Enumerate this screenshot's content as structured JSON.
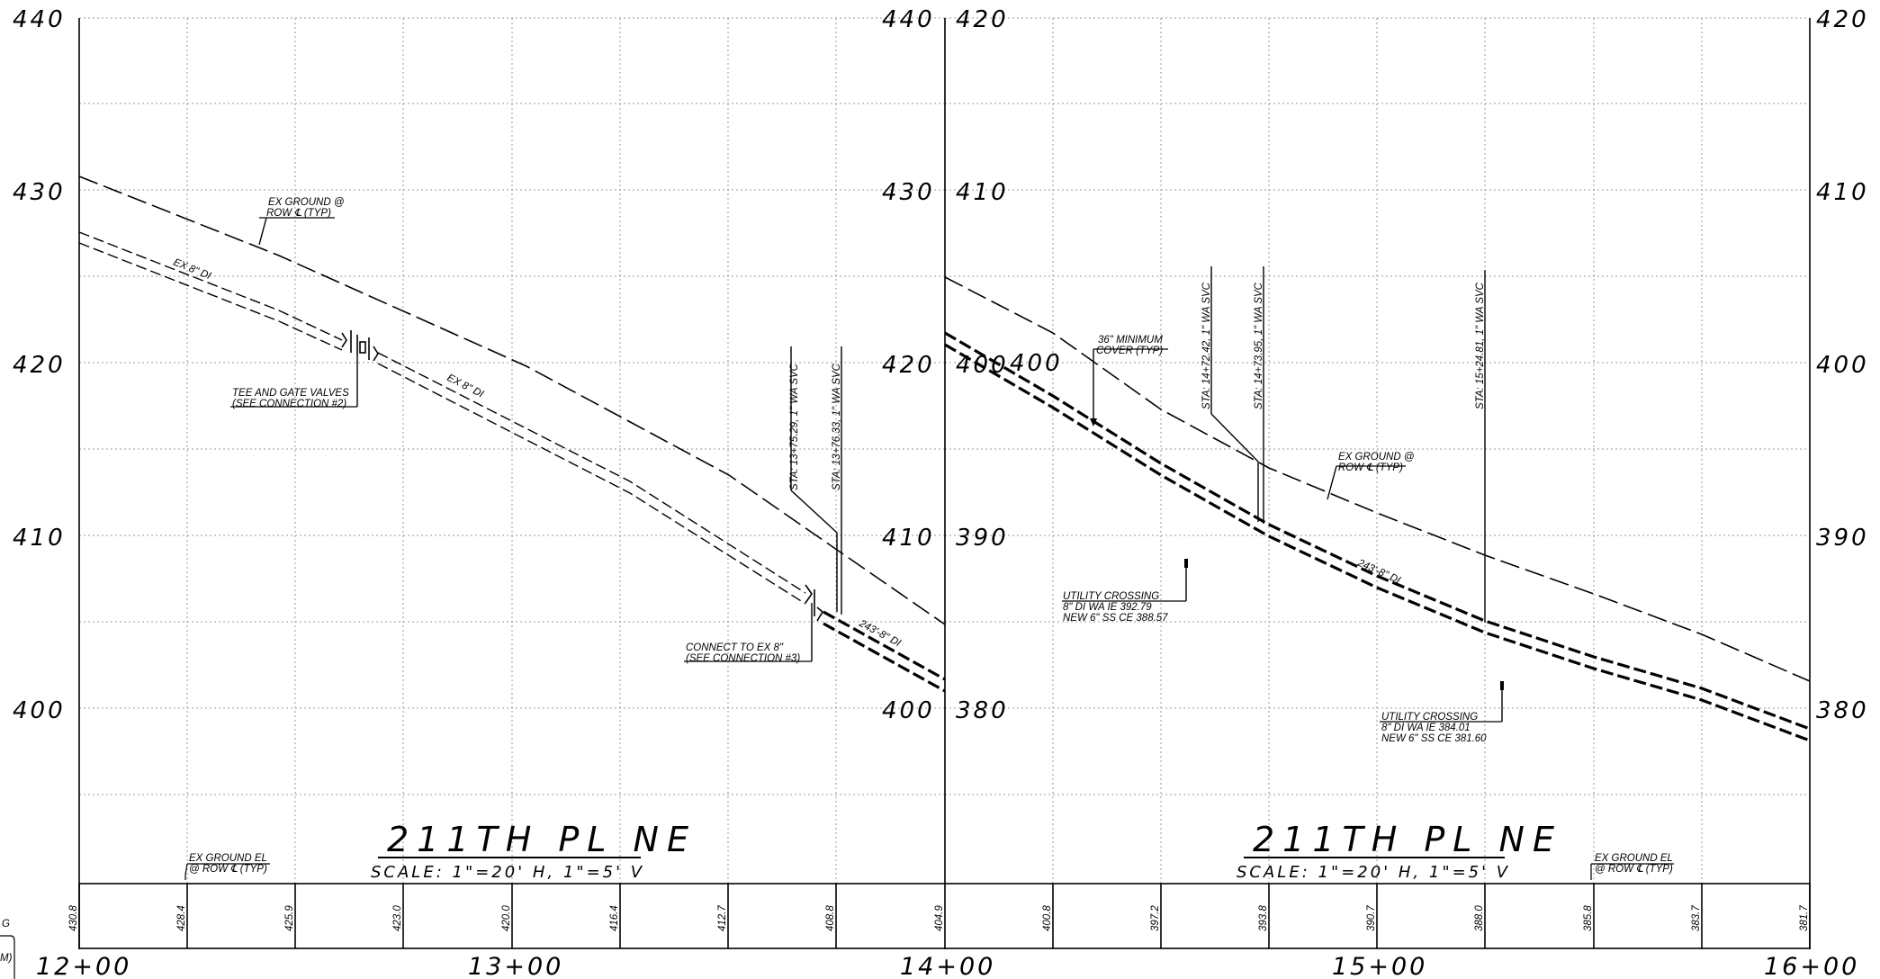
{
  "left_panel": {
    "elevations_left": [
      "440",
      "430",
      "420",
      "410",
      "400"
    ],
    "elevations_right": [
      "440",
      "430",
      "420",
      "410",
      "400"
    ],
    "annotations": {
      "ex_ground_1": "EX GROUND @",
      "ex_ground_2": "ROW ℄ (TYP)",
      "ex_pipe_1": "EX 8\" DI",
      "ex_pipe_2": "EX 8\" DI",
      "tee_1": "TEE AND GATE VALVES",
      "tee_2": "(SEE CONNECTION #2)",
      "svc_1": "STA: 13+75.29, 1\" WA SVC",
      "svc_2": "STA: 13+76.33, 1\" WA SVC",
      "connect_1": "CONNECT TO EX 8\"",
      "connect_2": "(SEE CONNECTION #3)",
      "new_pipe": "243'-8\" DI"
    },
    "title": "211TH PL NE",
    "scale": "SCALE: 1\"=20' H, 1\"=5' V",
    "band_note_1": "EX GROUND EL",
    "band_note_2": "@ ROW ℄ (TYP)"
  },
  "right_panel": {
    "elevations_left": [
      "420",
      "410",
      "400",
      "390",
      "380"
    ],
    "elevations_right": [
      "420",
      "410",
      "400",
      "390",
      "380"
    ],
    "annotations": {
      "min_cover_1": "36\" MINIMUM",
      "min_cover_2": "COVER (TYP)",
      "elev_400": "400",
      "svc_1": "STA: 14+72.42, 1\" WA SVC",
      "svc_2": "STA: 14+73.95, 1\" WA SVC",
      "svc_3": "STA: 15+24.81, 1\" WA SVC",
      "ex_ground_1": "EX GROUND @",
      "ex_ground_2": "ROW ℄ (TYP)",
      "new_pipe": "243'-8\" DI",
      "uc1_1": "UTILITY CROSSING",
      "uc1_2": "8\" DI WA IE 392.79",
      "uc1_3": "NEW 6\" SS CE 388.57",
      "uc2_1": "UTILITY CROSSING",
      "uc2_2": "8\" DI WA IE 384.01",
      "uc2_3": "NEW 6\" SS CE 381.60"
    },
    "title": "211TH PL NE",
    "scale": "SCALE: 1\"=20' H, 1\"=5' V",
    "band_note_1": "EX GROUND EL",
    "band_note_2": "@ ROW ℄ (TYP)"
  },
  "ground_elevations": [
    "430.8",
    "428.4",
    "425.9",
    "423.0",
    "420.0",
    "416.4",
    "412.7",
    "408.8",
    "404.9",
    "400.8",
    "397.2",
    "393.8",
    "390.7",
    "388.0",
    "385.8",
    "383.7",
    "381.7"
  ],
  "stations": [
    "12+00",
    "13+00",
    "14+00",
    "15+00",
    "16+00"
  ],
  "edge_fragments": [
    "G",
    "M)"
  ]
}
